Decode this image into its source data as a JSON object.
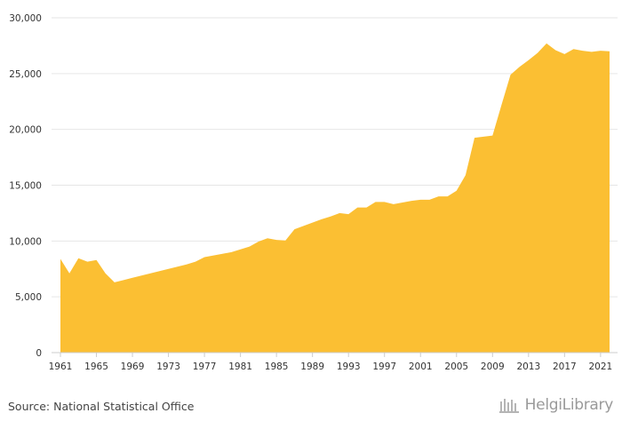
{
  "chart_data": {
    "type": "area",
    "title": "",
    "xlabel": "",
    "ylabel": "",
    "x": [
      1961,
      1962,
      1963,
      1964,
      1965,
      1966,
      1967,
      1968,
      1969,
      1970,
      1971,
      1972,
      1973,
      1974,
      1975,
      1976,
      1977,
      1978,
      1979,
      1980,
      1981,
      1982,
      1983,
      1984,
      1985,
      1986,
      1987,
      1988,
      1989,
      1990,
      1991,
      1992,
      1993,
      1994,
      1995,
      1996,
      1997,
      1998,
      1999,
      2000,
      2001,
      2002,
      2003,
      2004,
      2005,
      2006,
      2007,
      2008,
      2009,
      2010,
      2011,
      2012,
      2013,
      2014,
      2015,
      2016,
      2017,
      2018,
      2019,
      2020,
      2021,
      2022
    ],
    "series": [
      {
        "values": [
          8400,
          7100,
          8450,
          8150,
          8300,
          7100,
          6300,
          6500,
          6700,
          6900,
          7100,
          7300,
          7500,
          7700,
          7900,
          8150,
          8550,
          8700,
          8850,
          9000,
          9250,
          9500,
          9950,
          10250,
          10100,
          10050,
          11050,
          11350,
          11650,
          11950,
          12200,
          12500,
          12400,
          13000,
          13000,
          13500,
          13500,
          13300,
          13450,
          13600,
          13700,
          13700,
          14000,
          14000,
          14500,
          15900,
          19250,
          19350,
          19450,
          22200,
          24900,
          25600,
          26200,
          26850,
          27700,
          27100,
          26750,
          27200,
          27050,
          26950,
          27050,
          27000
        ]
      }
    ],
    "x_ticks": [
      "1961",
      "1965",
      "1969",
      "1973",
      "1977",
      "1981",
      "1985",
      "1989",
      "1993",
      "1997",
      "2001",
      "2005",
      "2009",
      "2013",
      "2017",
      "2021"
    ],
    "y_ticks": [
      "0",
      "5,000",
      "10,000",
      "15,000",
      "20,000",
      "25,000",
      "30,000"
    ],
    "xlim": [
      1961,
      2022
    ],
    "ylim": [
      0,
      30000
    ],
    "grid": true,
    "legend": "none",
    "colors": {
      "area": "#fbbf33",
      "grid": "#e6e6e6",
      "axis": "#cccccc"
    }
  },
  "footer": {
    "source": "Source: National Statistical Office",
    "brand": "HelgiLibrary"
  }
}
